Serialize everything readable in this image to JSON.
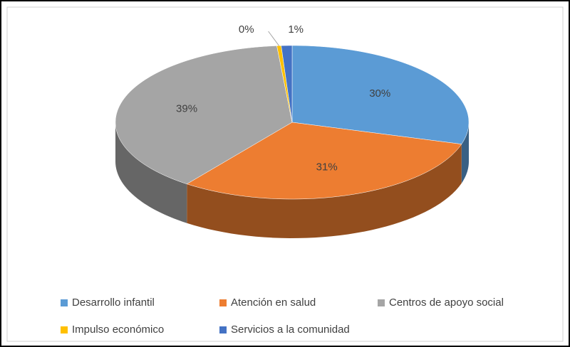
{
  "chart_data": {
    "type": "pie",
    "categories": [
      "Desarrollo infantil",
      "Atención en salud",
      "Centros de apoyo social",
      "Impulso económico",
      "Servicios a la comunidad"
    ],
    "values": [
      30,
      31,
      39,
      0.4,
      1
    ],
    "value_labels": [
      "30%",
      "31%",
      "39%",
      "0%",
      "1%"
    ],
    "colors": [
      "#5b9bd5",
      "#ed7d31",
      "#a5a5a5",
      "#ffc000",
      "#4472c4"
    ],
    "legend": "bottom"
  }
}
